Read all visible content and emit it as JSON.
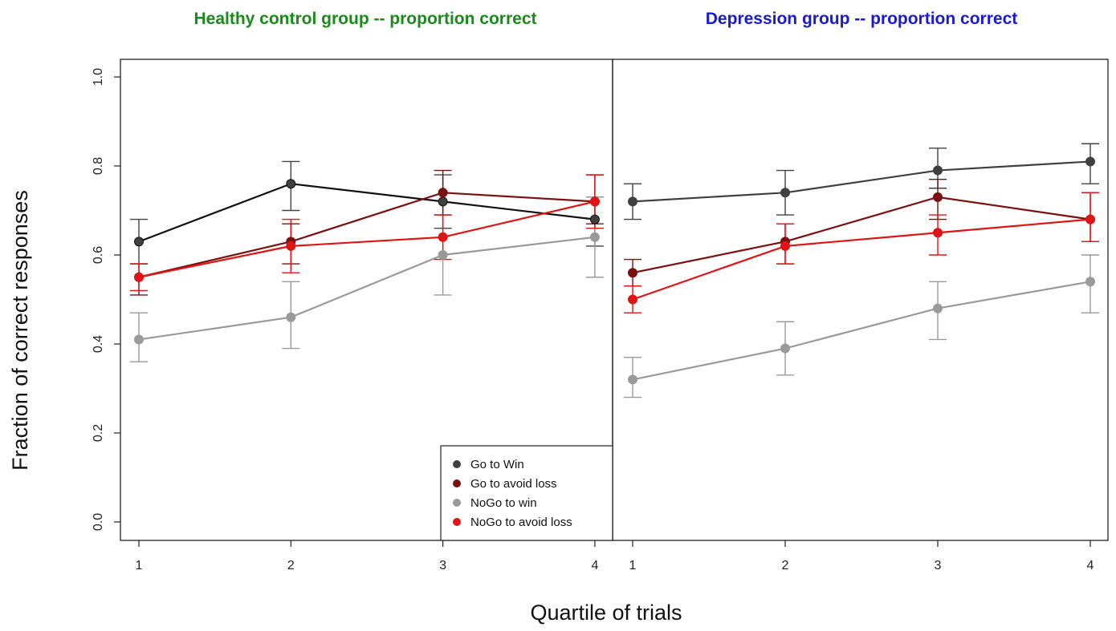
{
  "colors": {
    "go_to_win": "#404040",
    "go_to_avoid_loss": "#7a1010",
    "nogo_to_win": "#9a9a9a",
    "nogo_to_avoid_loss": "#e01414",
    "title_left": "#1a8a1a",
    "title_right": "#1a1ad0"
  },
  "chart_data": [
    {
      "type": "line",
      "title": "Healthy control group -- proportion correct",
      "xlabel": "Quartile of trials",
      "ylabel": "Fraction of correct responses",
      "x": [
        1,
        2,
        3,
        4
      ],
      "x_ticks": [
        "1",
        "2",
        "3",
        "4"
      ],
      "y_ticks": [
        "0.0",
        "0.2",
        "0.4",
        "0.6",
        "0.8",
        "1.0"
      ],
      "ylim": [
        0,
        1.0
      ],
      "legend_position": "bottom-right",
      "series": [
        {
          "name": "Go to Win",
          "values": [
            0.63,
            0.76,
            0.72,
            0.68
          ],
          "err_low": [
            0.58,
            0.7,
            0.66,
            0.62
          ],
          "err_high": [
            0.68,
            0.81,
            0.78,
            0.73
          ],
          "line_color": "#111111"
        },
        {
          "name": "Go to avoid loss",
          "values": [
            0.55,
            0.63,
            0.74,
            0.72
          ],
          "err_low": [
            0.51,
            0.58,
            0.69,
            0.67
          ],
          "err_high": [
            0.58,
            0.67,
            0.79,
            0.78
          ],
          "line_color": "#7a1010"
        },
        {
          "name": "NoGo to win",
          "values": [
            0.41,
            0.46,
            0.6,
            0.64
          ],
          "err_low": [
            0.36,
            0.39,
            0.51,
            0.55
          ],
          "err_high": [
            0.47,
            0.54,
            0.69,
            0.73
          ],
          "line_color": "#9a9a9a"
        },
        {
          "name": "NoGo to avoid loss",
          "values": [
            0.55,
            0.62,
            0.64,
            0.72
          ],
          "err_low": [
            0.52,
            0.56,
            0.59,
            0.66
          ],
          "err_high": [
            0.58,
            0.68,
            0.69,
            0.78
          ],
          "line_color": "#e01414"
        }
      ]
    },
    {
      "type": "line",
      "title": "Depression group -- proportion correct",
      "xlabel": "Quartile of trials",
      "ylabel": "Fraction of correct responses",
      "x": [
        1,
        2,
        3,
        4
      ],
      "x_ticks": [
        "1",
        "2",
        "3",
        "4"
      ],
      "ylim": [
        0,
        1.0
      ],
      "series": [
        {
          "name": "Go to Win",
          "values": [
            0.72,
            0.74,
            0.79,
            0.81
          ],
          "err_low": [
            0.68,
            0.69,
            0.75,
            0.76
          ],
          "err_high": [
            0.76,
            0.79,
            0.84,
            0.85
          ],
          "line_color": "#404040"
        },
        {
          "name": "Go to avoid loss",
          "values": [
            0.56,
            0.63,
            0.73,
            0.68
          ],
          "err_low": [
            0.53,
            0.58,
            0.68,
            0.63
          ],
          "err_high": [
            0.59,
            0.67,
            0.77,
            0.74
          ],
          "line_color": "#7a1010"
        },
        {
          "name": "NoGo to win",
          "values": [
            0.32,
            0.39,
            0.48,
            0.54
          ],
          "err_low": [
            0.28,
            0.33,
            0.41,
            0.47
          ],
          "err_high": [
            0.37,
            0.45,
            0.54,
            0.6
          ],
          "line_color": "#9a9a9a"
        },
        {
          "name": "NoGo to avoid loss",
          "values": [
            0.5,
            0.62,
            0.65,
            0.68
          ],
          "err_low": [
            0.47,
            0.58,
            0.6,
            0.63
          ],
          "err_high": [
            0.53,
            0.67,
            0.69,
            0.74
          ],
          "line_color": "#e01414"
        }
      ]
    }
  ]
}
